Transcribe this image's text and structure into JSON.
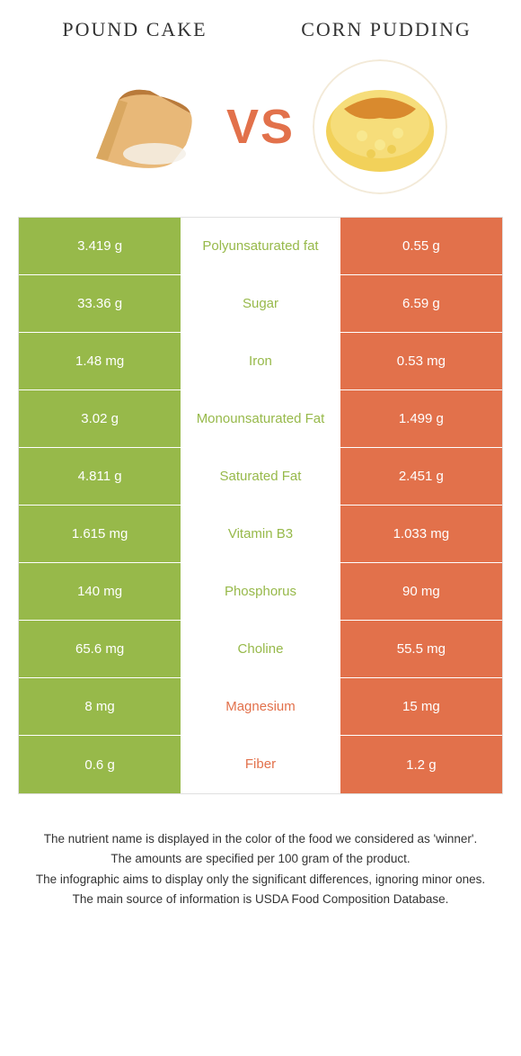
{
  "colors": {
    "green": "#97b94a",
    "orange": "#e2714b",
    "vs_text": "#e2714b",
    "title_text": "#333333"
  },
  "foods": {
    "left": {
      "name": "Pound Cake"
    },
    "right": {
      "name": "Corn Pudding"
    }
  },
  "vs_label": "VS",
  "rows": [
    {
      "nutrient": "Polyunsaturated fat",
      "left": "3.419 g",
      "right": "0.55 g",
      "winner": "left"
    },
    {
      "nutrient": "Sugar",
      "left": "33.36 g",
      "right": "6.59 g",
      "winner": "left"
    },
    {
      "nutrient": "Iron",
      "left": "1.48 mg",
      "right": "0.53 mg",
      "winner": "left"
    },
    {
      "nutrient": "Monounsaturated Fat",
      "left": "3.02 g",
      "right": "1.499 g",
      "winner": "left"
    },
    {
      "nutrient": "Saturated Fat",
      "left": "4.811 g",
      "right": "2.451 g",
      "winner": "left"
    },
    {
      "nutrient": "Vitamin B3",
      "left": "1.615 mg",
      "right": "1.033 mg",
      "winner": "left"
    },
    {
      "nutrient": "Phosphorus",
      "left": "140 mg",
      "right": "90 mg",
      "winner": "left"
    },
    {
      "nutrient": "Choline",
      "left": "65.6 mg",
      "right": "55.5 mg",
      "winner": "left"
    },
    {
      "nutrient": "Magnesium",
      "left": "8 mg",
      "right": "15 mg",
      "winner": "right"
    },
    {
      "nutrient": "Fiber",
      "left": "0.6 g",
      "right": "1.2 g",
      "winner": "right"
    }
  ],
  "footer": [
    "The nutrient name is displayed in the color of the food we considered as 'winner'.",
    "The amounts are specified per 100 gram of the product.",
    "The infographic aims to display only the significant differences, ignoring minor ones.",
    "The main source of information is USDA Food Composition Database."
  ]
}
